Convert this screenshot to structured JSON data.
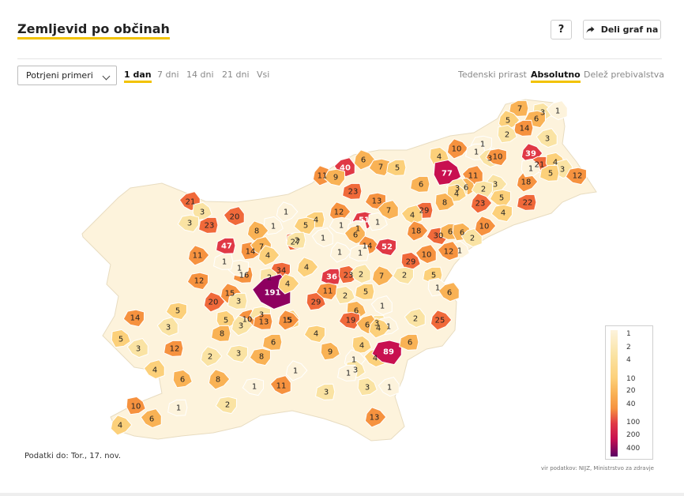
{
  "header": {
    "title": "Zemljevid po občinah",
    "help_label": "?",
    "share_label": "Deli graf na"
  },
  "controls": {
    "metric_select": "Potrjeni primeri",
    "time_tabs": [
      "1 dan",
      "7 dni",
      "14 dni",
      "21 dni",
      "Vsi"
    ],
    "time_tab_active": "1 dan",
    "mode_tabs": [
      "Tedenski prirast",
      "Absolutno",
      "Delež prebivalstva"
    ],
    "mode_tab_active": "Absolutno"
  },
  "legend": {
    "ticks": [
      "1",
      "2",
      "4",
      "10",
      "20",
      "40",
      "100",
      "200",
      "400"
    ]
  },
  "footer": {
    "data_date": "Podatki do: Tor., 17. nov.",
    "source": "vir podatkov: NIJZ, Ministrstvo za zdravje"
  },
  "map": {
    "colors": {
      "c1": "#fdf3dc",
      "c2": "#fae3a3",
      "c3": "#fcd07a",
      "c4": "#f9b255",
      "c5": "#f6923f",
      "c6": "#f0693a",
      "c7": "#e03845",
      "c8": "#c81050",
      "c9": "#8e0060"
    },
    "municipality_values": [
      7,
      3,
      1,
      5,
      6,
      14,
      2,
      3,
      10,
      1,
      1,
      4,
      3,
      39,
      10,
      21,
      4,
      3,
      18,
      12,
      5,
      1,
      40,
      6,
      7,
      5,
      77,
      11,
      11,
      9,
      23,
      6,
      3,
      3,
      2,
      6,
      4,
      21,
      12,
      13,
      29,
      8,
      4,
      23,
      5,
      22,
      3,
      20,
      1,
      51,
      4,
      1,
      7,
      18,
      30,
      6,
      6,
      2,
      10,
      4,
      23,
      1,
      1,
      1,
      1,
      1,
      27,
      6,
      14,
      52,
      1,
      1,
      12,
      8,
      3,
      47,
      14,
      7,
      4,
      5,
      2,
      29,
      10,
      11,
      34,
      36,
      23,
      2,
      7,
      2,
      5,
      1,
      6,
      4,
      12,
      16,
      2,
      191,
      4,
      1,
      1,
      29,
      5,
      15,
      11,
      5,
      2,
      1,
      20,
      5,
      3,
      5,
      10,
      15,
      3,
      13,
      6,
      3,
      3,
      19,
      3,
      4,
      2,
      25,
      14,
      8,
      1,
      6,
      4,
      4,
      6,
      5,
      3,
      2,
      3,
      12,
      9,
      4,
      1,
      89,
      6,
      3,
      4,
      1,
      8,
      1,
      6,
      11,
      8,
      1,
      3,
      3,
      1,
      13,
      2,
      1,
      10,
      6,
      4,
      25,
      26
    ]
  }
}
